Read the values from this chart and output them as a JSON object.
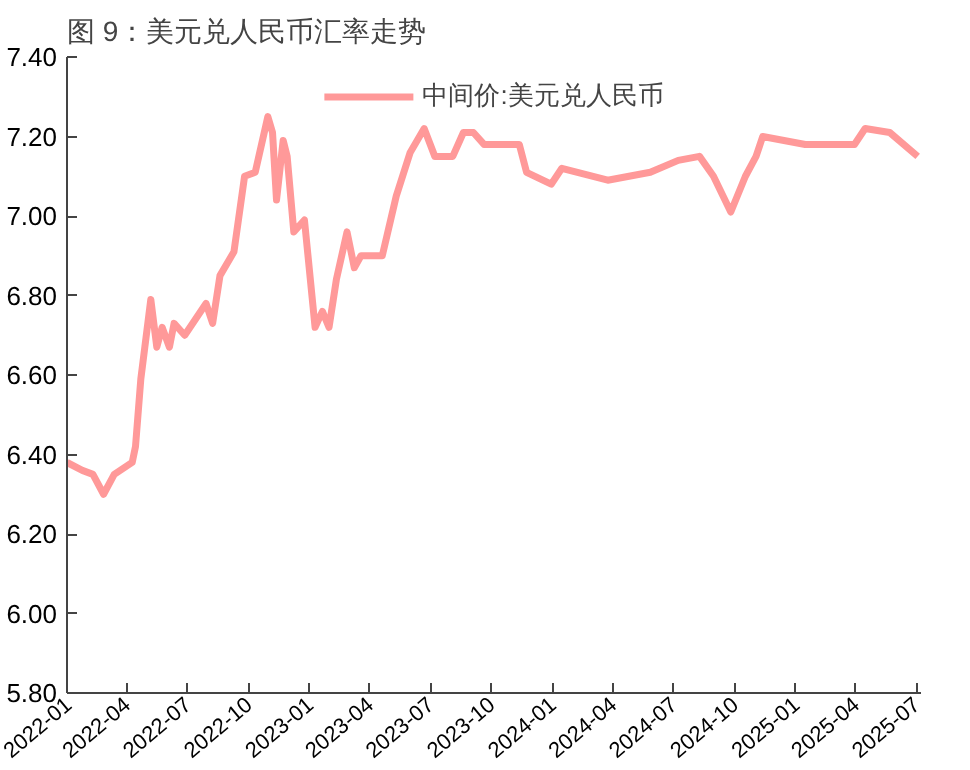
{
  "chart_data": {
    "type": "line",
    "title": "图 9：美元兑人民币汇率走势",
    "x": [
      "2022-01-01",
      "2022-01-24",
      "2022-02-09",
      "2022-02-25",
      "2022-03-13",
      "2022-04-09",
      "2022-04-14",
      "2022-04-22",
      "2022-05-07",
      "2022-05-16",
      "2022-05-24",
      "2022-06-04",
      "2022-06-11",
      "2022-06-27",
      "2022-07-29",
      "2022-08-08",
      "2022-08-19",
      "2022-09-09",
      "2022-09-25",
      "2022-10-11",
      "2022-10-30",
      "2022-11-06",
      "2022-11-12",
      "2022-11-22",
      "2022-11-28",
      "2022-12-08",
      "2022-12-24",
      "2023-01-09",
      "2023-01-20",
      "2023-01-30",
      "2023-02-10",
      "2023-02-26",
      "2023-03-09",
      "2023-03-19",
      "2023-04-20",
      "2023-05-11",
      "2023-06-01",
      "2023-06-22",
      "2023-07-08",
      "2023-08-04",
      "2023-08-20",
      "2023-09-04",
      "2023-09-20",
      "2023-10-22",
      "2023-11-12",
      "2023-11-23",
      "2023-12-30",
      "2024-01-15",
      "2024-03-24",
      "2024-05-27",
      "2024-07-08",
      "2024-08-09",
      "2024-08-30",
      "2024-09-25",
      "2024-10-17",
      "2024-11-02",
      "2024-11-12",
      "2025-01-15",
      "2025-03-30",
      "2025-04-15",
      "2025-05-22",
      "2025-07-03"
    ],
    "series": [
      {
        "name": "中间价:美元兑人民币",
        "color": "#ff9999",
        "values": [
          6.38,
          6.36,
          6.35,
          6.3,
          6.35,
          6.38,
          6.42,
          6.59,
          6.79,
          6.67,
          6.72,
          6.67,
          6.73,
          6.7,
          6.78,
          6.73,
          6.85,
          6.91,
          7.1,
          7.11,
          7.25,
          7.21,
          7.04,
          7.19,
          7.15,
          6.96,
          6.99,
          6.72,
          6.76,
          6.72,
          6.84,
          6.96,
          6.87,
          6.9,
          6.9,
          7.05,
          7.16,
          7.22,
          7.15,
          7.15,
          7.21,
          7.21,
          7.18,
          7.18,
          7.18,
          7.11,
          7.08,
          7.12,
          7.09,
          7.11,
          7.14,
          7.15,
          7.1,
          7.01,
          7.1,
          7.15,
          7.2,
          7.18,
          7.18,
          7.22,
          7.21,
          7.15
        ]
      }
    ],
    "xlim": [
      "2022-01-01",
      "2025-07-08"
    ],
    "xticks": [
      {
        "value": "2022-01-01",
        "label": "2022-01"
      },
      {
        "value": "2022-04-01",
        "label": "2022-04"
      },
      {
        "value": "2022-07-01",
        "label": "2022-07"
      },
      {
        "value": "2022-10-01",
        "label": "2022-10"
      },
      {
        "value": "2023-01-01",
        "label": "2023-01"
      },
      {
        "value": "2023-04-01",
        "label": "2023-04"
      },
      {
        "value": "2023-07-01",
        "label": "2023-07"
      },
      {
        "value": "2023-10-01",
        "label": "2023-10"
      },
      {
        "value": "2024-01-01",
        "label": "2024-01"
      },
      {
        "value": "2024-04-01",
        "label": "2024-04"
      },
      {
        "value": "2024-07-01",
        "label": "2024-07"
      },
      {
        "value": "2024-10-01",
        "label": "2024-10"
      },
      {
        "value": "2025-01-01",
        "label": "2025-01"
      },
      {
        "value": "2025-04-01",
        "label": "2025-04"
      },
      {
        "value": "2025-07-01",
        "label": "2025-07"
      }
    ],
    "ylim": [
      5.8,
      7.4
    ],
    "yticks": [
      {
        "value": 5.8,
        "label": "5.80"
      },
      {
        "value": 6.0,
        "label": "6.00"
      },
      {
        "value": 6.2,
        "label": "6.20"
      },
      {
        "value": 6.4,
        "label": "6.40"
      },
      {
        "value": 6.6,
        "label": "6.60"
      },
      {
        "value": 6.8,
        "label": "6.80"
      },
      {
        "value": 7.0,
        "label": "7.00"
      },
      {
        "value": 7.2,
        "label": "7.20"
      },
      {
        "value": 7.4,
        "label": "7.40"
      }
    ],
    "legend": "top",
    "grid": false,
    "marker": "none",
    "line_style": "solid"
  }
}
